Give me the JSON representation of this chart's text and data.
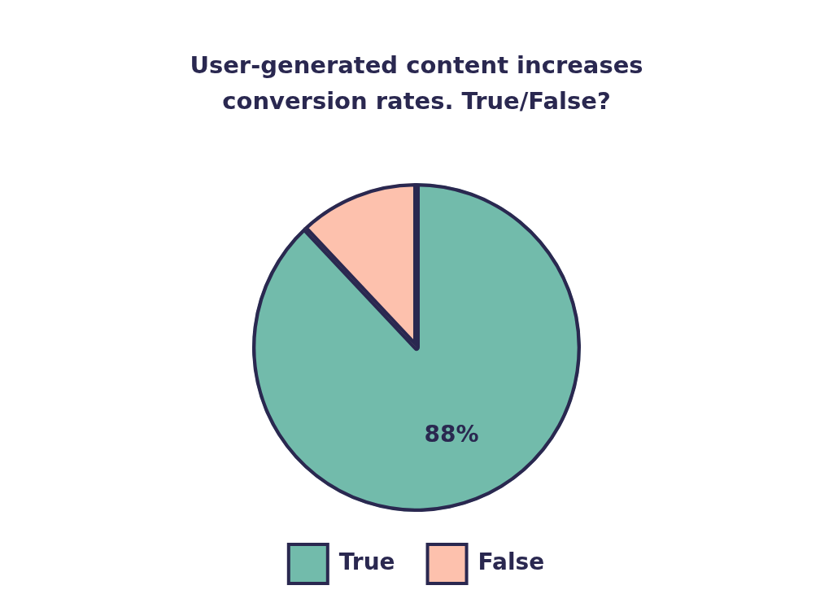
{
  "chart_data": {
    "type": "pie",
    "title": "User-generated content increases conversion rates. True/False?",
    "categories": [
      "True",
      "False"
    ],
    "values": [
      88,
      12
    ],
    "colors": [
      "#72bbab",
      "#fdc1ad"
    ],
    "value_labels": [
      "88%",
      null
    ],
    "legend": "bottom"
  }
}
